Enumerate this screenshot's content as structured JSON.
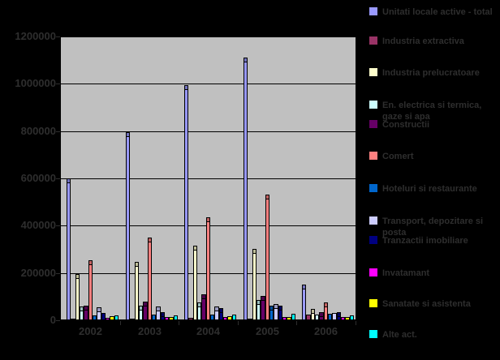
{
  "chart_data": {
    "type": "bar",
    "title": "",
    "xlabel": "",
    "ylabel": "",
    "categories": [
      "2002",
      "2003",
      "2004",
      "2005",
      "2006"
    ],
    "series": [
      {
        "name": "Unitati locale active - total",
        "color": "#9999FF",
        "values": [
          600000,
          797000,
          995000,
          1110000,
          150000
        ]
      },
      {
        "name": "Industria extractiva",
        "color": "#993366",
        "values": [
          8000,
          8000,
          9000,
          8000,
          25000
        ]
      },
      {
        "name": "Industria prelucratoare",
        "color": "#FFFFCC",
        "values": [
          195000,
          248000,
          314000,
          303000,
          48000
        ]
      },
      {
        "name": "En. electrica si termica, gaze si apa",
        "color": "#CCFFFF",
        "values": [
          57000,
          61000,
          74000,
          86000,
          23000
        ]
      },
      {
        "name": "Constructii",
        "color": "#660066",
        "values": [
          63000,
          80000,
          109000,
          103000,
          34000
        ]
      },
      {
        "name": "Comert",
        "color": "#FF8080",
        "values": [
          254000,
          351000,
          434000,
          531000,
          77000
        ]
      },
      {
        "name": "Hoteluri si restaurante",
        "color": "#0066CC",
        "values": [
          21000,
          23000,
          23000,
          62000,
          26000
        ]
      },
      {
        "name": "Transport, depozitare si posta",
        "color": "#CCCCFF",
        "values": [
          54000,
          59000,
          57000,
          69000,
          31000
        ]
      },
      {
        "name": "Tranzactii imobiliare",
        "color": "#000080",
        "values": [
          31000,
          34000,
          51000,
          62000,
          34000
        ]
      },
      {
        "name": "Invatamant",
        "color": "#FF00FF",
        "values": [
          11000,
          12000,
          13000,
          12000,
          14000
        ]
      },
      {
        "name": "Sanatate si asistenta",
        "color": "#FFFF00",
        "values": [
          16000,
          15000,
          17000,
          15000,
          15000
        ]
      },
      {
        "name": "Alte act.",
        "color": "#00FFFF",
        "values": [
          19000,
          21000,
          24000,
          29000,
          19000
        ]
      }
    ],
    "ylim": [
      0,
      1200000
    ],
    "ytick_step": 200000,
    "ytick_labels": [
      "0",
      "200000",
      "400000",
      "600000",
      "800000",
      "1000000",
      "1200000"
    ],
    "grid": true,
    "legend_position": "right",
    "colors": {
      "page_bg": "#000000",
      "plot_bg": "#C0C0C0",
      "gridline": "#000000",
      "text": "#2e2e2e"
    }
  }
}
